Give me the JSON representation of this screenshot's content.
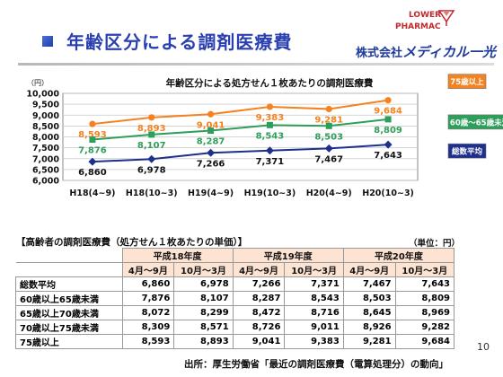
{
  "header": {
    "title": "年齢区分による調剤医療費",
    "logo_line1": "PHARMAC",
    "logo_line2": "LOWER",
    "company_prefix": "株式会社",
    "company_name": "メディカル一光"
  },
  "chart_data": {
    "type": "line",
    "title": "年齢区分による処方せん１枚あたりの調剤医療費",
    "unit": "（円）",
    "categories": [
      "H18(4~9)",
      "H18(10~3)",
      "H19(4~9)",
      "H19(10~3)",
      "H20(4~9)",
      "H20(10~3)"
    ],
    "ylim": [
      6000,
      10000
    ],
    "yticks": [
      "6,000",
      "6,500",
      "7,000",
      "7,500",
      "8,000",
      "8,500",
      "9,000",
      "9,500",
      "10,000"
    ],
    "grid": true,
    "series": [
      {
        "name": "75歳以上",
        "color": "#f58220",
        "values": [
          8593,
          8893,
          9041,
          9383,
          9281,
          9684
        ],
        "labels": [
          "8,593",
          "8,893",
          "9,041",
          "9,383",
          "9,281",
          "9,684"
        ]
      },
      {
        "name": "60歳～65歳未満",
        "color": "#2e9e5b",
        "values": [
          7876,
          8107,
          8287,
          8543,
          8503,
          8809
        ],
        "labels": [
          "7,876",
          "8,107",
          "8,287",
          "8,543",
          "8,503",
          "8,809"
        ]
      },
      {
        "name": "総数平均",
        "color": "#1f2f8c",
        "values": [
          6860,
          6978,
          7266,
          7371,
          7467,
          7643
        ],
        "labels": [
          "6,860",
          "6,978",
          "7,266",
          "7,371",
          "7,467",
          "7,643"
        ]
      }
    ]
  },
  "table": {
    "section_title": "【高齢者の調剤医療費（処方せん１枚あたりの単価）】",
    "unit": "（単位：円）",
    "years": [
      "平成18年度",
      "平成19年度",
      "平成20年度"
    ],
    "periods": [
      "4月～9月",
      "10月～3月",
      "4月～9月",
      "10月～3月",
      "4月～9月",
      "10月～3月"
    ],
    "rows": [
      {
        "label": "総数平均",
        "values": [
          "6,860",
          "6,978",
          "7,266",
          "7,371",
          "7,467",
          "7,643"
        ]
      },
      {
        "label": "60歳以上65歳未満",
        "values": [
          "7,876",
          "8,107",
          "8,287",
          "8,543",
          "8,503",
          "8,809"
        ]
      },
      {
        "label": "65歳以上70歳未満",
        "values": [
          "8,072",
          "8,299",
          "8,472",
          "8,716",
          "8,645",
          "8,969"
        ]
      },
      {
        "label": "70歳以上75歳未満",
        "values": [
          "8,309",
          "8,571",
          "8,726",
          "9,011",
          "8,926",
          "9,282"
        ]
      },
      {
        "label": "75歳以上",
        "values": [
          "8,593",
          "8,893",
          "9,041",
          "9,383",
          "9,281",
          "9,684"
        ]
      }
    ]
  },
  "footer": {
    "page_number": "10",
    "source": "出所：厚生労働省「最近の調剤医療費（電算処理分）の動向」"
  }
}
